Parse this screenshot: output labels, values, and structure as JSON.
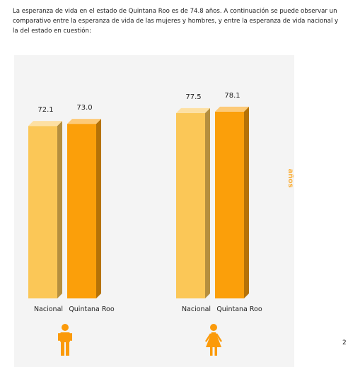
{
  "intro_text": "La esperanza de vida en el estado de Quintana Roo es de 74.8 años. A continuación se puede observar un comparativo entre la esperanza de vida de las mujeres y hombres, y entre la esperanza de vida nacional y la del estado en cuestión:",
  "page_number": "2",
  "colors": {
    "nacional": "#fbc757",
    "quintana_roo": "#fb9f0a",
    "axis_label": "#fbb03b",
    "icon": "#fb9a0a"
  },
  "chart_data": {
    "type": "bar",
    "ylabel": "años",
    "ylim": [
      0,
      80
    ],
    "groups": [
      {
        "icon": "male-icon",
        "categories": [
          "Nacional",
          "Quintana Roo"
        ],
        "values": [
          72.1,
          73.0
        ],
        "labels": [
          "72.1",
          "73.0"
        ]
      },
      {
        "icon": "female-icon",
        "categories": [
          "Nacional",
          "Quintana Roo"
        ],
        "values": [
          77.5,
          78.1
        ],
        "labels": [
          "77.5",
          "78.1"
        ]
      }
    ]
  }
}
